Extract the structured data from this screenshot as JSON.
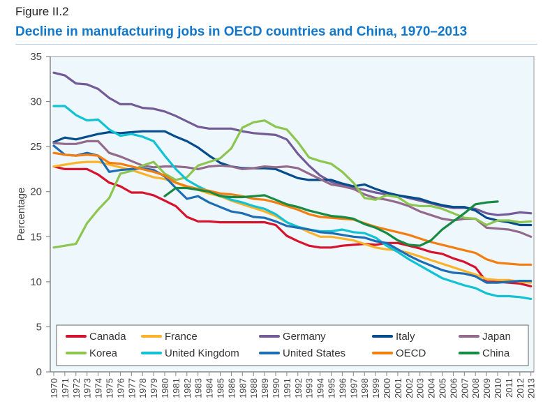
{
  "figure": {
    "label": "Figure II.2",
    "title": "Decline in manufacturing jobs in OECD countries and China, 1970–2013"
  },
  "chart_data": {
    "type": "line",
    "title": "Decline in manufacturing jobs in OECD countries and China, 1970–2013",
    "xlabel": "",
    "ylabel": "Percentage",
    "ylim": [
      0,
      35
    ],
    "yticks": [
      0,
      5,
      10,
      15,
      20,
      25,
      30,
      35
    ],
    "grid": false,
    "legend_position": "bottom-inside",
    "x": [
      1970,
      1971,
      1972,
      1973,
      1974,
      1975,
      1976,
      1977,
      1978,
      1979,
      1980,
      1981,
      1982,
      1983,
      1984,
      1985,
      1986,
      1987,
      1988,
      1989,
      1990,
      1991,
      1992,
      1993,
      1994,
      1995,
      1996,
      1997,
      1998,
      1999,
      2000,
      2001,
      2002,
      2003,
      2004,
      2005,
      2006,
      2007,
      2008,
      2009,
      2010,
      2011,
      2012,
      2013
    ],
    "series": [
      {
        "name": "Canada",
        "color": "#d7122c",
        "start": 1970,
        "values": [
          22.8,
          22.5,
          22.5,
          22.5,
          21.9,
          21.0,
          20.6,
          19.9,
          19.9,
          19.6,
          19.0,
          18.4,
          17.2,
          16.7,
          16.7,
          16.6,
          16.6,
          16.6,
          16.6,
          16.6,
          16.3,
          15.1,
          14.5,
          14.0,
          13.8,
          13.8,
          14.0,
          14.1,
          14.2,
          14.1,
          14.3,
          14.3,
          14.0,
          13.7,
          13.3,
          13.1,
          12.6,
          12.2,
          11.6,
          10.0,
          10.0,
          9.9,
          9.8,
          9.5
        ]
      },
      {
        "name": "France",
        "color": "#fdb22b",
        "start": 1970,
        "values": [
          22.8,
          23.0,
          23.2,
          23.3,
          23.3,
          23.0,
          22.7,
          22.4,
          22.0,
          21.6,
          21.4,
          21.0,
          20.5,
          20.2,
          19.8,
          19.5,
          19.0,
          18.6,
          18.2,
          17.8,
          17.3,
          16.6,
          16.1,
          15.5,
          15.0,
          15.0,
          14.8,
          14.6,
          14.2,
          13.8,
          13.6,
          13.5,
          13.2,
          12.8,
          12.4,
          12.0,
          11.6,
          11.2,
          10.8,
          10.3,
          10.2,
          10.2,
          10.0,
          9.9
        ]
      },
      {
        "name": "Germany",
        "color": "#735b97",
        "start": 1970,
        "values": [
          33.2,
          32.9,
          32.0,
          31.9,
          31.4,
          30.4,
          29.7,
          29.7,
          29.3,
          29.2,
          28.9,
          28.4,
          27.8,
          27.2,
          27.0,
          27.0,
          27.0,
          26.7,
          26.5,
          26.4,
          26.3,
          25.8,
          24.2,
          22.9,
          21.8,
          21.1,
          20.7,
          20.4,
          20.2,
          19.9,
          19.7,
          19.6,
          19.3,
          19.0,
          18.7,
          18.4,
          18.2,
          18.2,
          18.1,
          17.6,
          17.4,
          17.5,
          17.7,
          17.6
        ]
      },
      {
        "name": "Italy",
        "color": "#044c8d",
        "start": 1970,
        "values": [
          25.5,
          26.0,
          25.8,
          26.1,
          26.4,
          26.6,
          26.5,
          26.6,
          26.7,
          26.7,
          26.7,
          26.1,
          25.6,
          24.9,
          24.0,
          23.2,
          22.8,
          22.6,
          22.6,
          22.6,
          22.5,
          22.0,
          21.5,
          21.3,
          21.3,
          21.3,
          20.9,
          20.6,
          20.8,
          20.3,
          19.9,
          19.6,
          19.4,
          19.2,
          18.8,
          18.5,
          18.3,
          18.3,
          17.9,
          17.1,
          16.8,
          16.6,
          16.3,
          16.3
        ]
      },
      {
        "name": "Japan",
        "color": "#936a8c",
        "start": 1970,
        "values": [
          25.4,
          25.3,
          25.3,
          25.6,
          25.6,
          24.3,
          23.9,
          23.4,
          22.9,
          22.7,
          22.8,
          22.8,
          22.7,
          22.5,
          22.8,
          22.9,
          22.8,
          22.5,
          22.6,
          22.8,
          22.7,
          22.8,
          22.6,
          22.0,
          21.4,
          20.8,
          20.6,
          20.3,
          19.7,
          19.3,
          19.1,
          18.8,
          18.4,
          17.8,
          17.4,
          17.0,
          16.8,
          17.0,
          17.0,
          16.0,
          15.9,
          15.8,
          15.5,
          15.0
        ]
      },
      {
        "name": "Korea",
        "color": "#8cc54f",
        "start": 1970,
        "values": [
          13.8,
          14.0,
          14.2,
          16.5,
          18.0,
          19.3,
          22.0,
          22.3,
          22.9,
          23.3,
          22.0,
          21.3,
          21.6,
          22.9,
          23.3,
          23.7,
          24.8,
          27.1,
          27.7,
          27.9,
          27.2,
          26.9,
          25.5,
          23.8,
          23.4,
          23.1,
          22.2,
          21.0,
          19.3,
          19.1,
          19.6,
          19.4,
          18.6,
          18.4,
          18.4,
          18.1,
          17.6,
          17.1,
          17.0,
          16.3,
          16.8,
          16.8,
          16.6,
          16.7
        ]
      },
      {
        "name": "United Kingdom",
        "color": "#10c2d3",
        "start": 1970,
        "values": [
          29.5,
          29.5,
          28.5,
          27.9,
          28.0,
          26.9,
          26.2,
          26.4,
          26.1,
          25.6,
          24.0,
          22.5,
          21.3,
          20.6,
          20.0,
          19.6,
          19.1,
          18.8,
          18.4,
          18.1,
          17.5,
          16.6,
          16.1,
          15.8,
          15.6,
          15.6,
          15.8,
          15.5,
          15.4,
          14.9,
          14.0,
          13.3,
          12.5,
          11.8,
          11.1,
          10.4,
          10.0,
          9.6,
          9.3,
          8.7,
          8.4,
          8.4,
          8.3,
          8.1
        ]
      },
      {
        "name": "United States",
        "color": "#1d6db5",
        "start": 1970,
        "values": [
          25.1,
          24.1,
          24.0,
          24.3,
          24.0,
          22.2,
          22.4,
          22.5,
          22.6,
          22.4,
          21.7,
          20.4,
          19.2,
          19.5,
          18.8,
          18.3,
          17.8,
          17.6,
          17.2,
          17.1,
          16.7,
          16.2,
          16.0,
          15.8,
          15.5,
          15.4,
          15.2,
          15.0,
          14.9,
          14.5,
          14.3,
          13.6,
          12.9,
          12.3,
          11.8,
          11.3,
          11.0,
          10.9,
          10.6,
          9.9,
          9.9,
          10.0,
          10.1,
          10.1
        ]
      },
      {
        "name": "OECD",
        "color": "#f47d0f",
        "start": 1970,
        "values": [
          24.3,
          24.1,
          24.0,
          24.1,
          24.0,
          23.2,
          23.1,
          22.8,
          22.5,
          22.2,
          21.8,
          21.0,
          20.6,
          20.3,
          20.1,
          19.8,
          19.7,
          19.5,
          19.2,
          19.1,
          18.8,
          18.4,
          18.0,
          17.5,
          17.2,
          17.1,
          17.0,
          16.9,
          16.5,
          16.1,
          15.8,
          15.5,
          15.2,
          14.8,
          14.4,
          14.1,
          13.8,
          13.5,
          13.2,
          12.5,
          12.1,
          12.0,
          11.9,
          11.9
        ]
      },
      {
        "name": "China",
        "color": "#168b43",
        "start": 1980,
        "values": [
          19.5,
          20.4,
          20.4,
          20.2,
          20.0,
          19.5,
          19.4,
          19.4,
          19.5,
          19.6,
          19.1,
          18.6,
          18.3,
          17.9,
          17.6,
          17.3,
          17.2,
          17.0,
          16.4,
          16.0,
          15.4,
          14.6,
          14.1,
          14.0,
          14.6,
          15.8,
          16.7,
          17.6,
          18.6,
          18.8,
          18.9
        ]
      }
    ]
  }
}
